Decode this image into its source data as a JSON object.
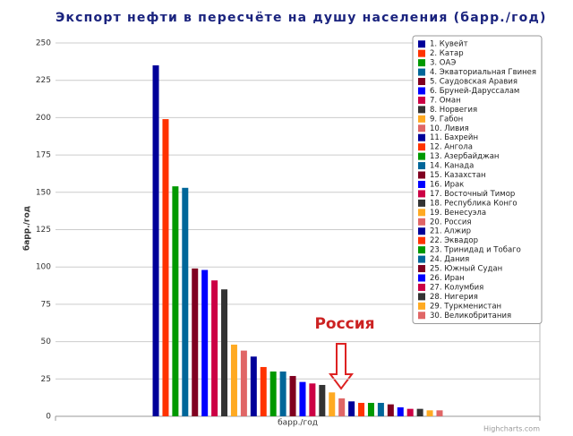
{
  "chart_data": {
    "type": "bar",
    "title": "Экспорт нефти в пересчёте на душу населения (барр./год)",
    "y_label": "барр./год",
    "categories": [
      "барр./год"
    ],
    "annotation": "Россия",
    "credits": "Highcharts.com",
    "ylim": [
      0,
      250
    ],
    "yticks": [
      0,
      25,
      50,
      75,
      100,
      125,
      150,
      175,
      200,
      225,
      250
    ],
    "grid": true,
    "legend": "top-right",
    "series": [
      {
        "name": "1. Кувейт",
        "color": "#000099",
        "values": [
          235
        ]
      },
      {
        "name": "2. Катар",
        "color": "#ff3300",
        "values": [
          199
        ]
      },
      {
        "name": "3. ОАЭ",
        "color": "#009900",
        "values": [
          154
        ]
      },
      {
        "name": "4. Экваториальная Гвинея",
        "color": "#006699",
        "values": [
          153
        ]
      },
      {
        "name": "5. Саудовская Аравия",
        "color": "#800020",
        "values": [
          99
        ]
      },
      {
        "name": "6. Бруней-Даруссалам",
        "color": "#0000ff",
        "values": [
          98
        ]
      },
      {
        "name": "7. Оман",
        "color": "#cc0044",
        "values": [
          91
        ]
      },
      {
        "name": "8. Норвегия",
        "color": "#333333",
        "values": [
          85
        ]
      },
      {
        "name": "9. Габон",
        "color": "#ffaa22",
        "values": [
          48
        ]
      },
      {
        "name": "10. Ливия",
        "color": "#e06666",
        "values": [
          44
        ]
      },
      {
        "name": "11. Бахрейн",
        "color": "#000099",
        "values": [
          40
        ]
      },
      {
        "name": "12. Ангола",
        "color": "#ff3300",
        "values": [
          33
        ]
      },
      {
        "name": "13. Азербайджан",
        "color": "#009900",
        "values": [
          30
        ]
      },
      {
        "name": "14. Канада",
        "color": "#006699",
        "values": [
          30
        ]
      },
      {
        "name": "15. Казахстан",
        "color": "#800020",
        "values": [
          27
        ]
      },
      {
        "name": "16. Ирак",
        "color": "#0000ff",
        "values": [
          23
        ]
      },
      {
        "name": "17. Восточный Тимор",
        "color": "#cc0044",
        "values": [
          22
        ]
      },
      {
        "name": "18. Республика Конго",
        "color": "#333333",
        "values": [
          21
        ]
      },
      {
        "name": "19. Венесуэла",
        "color": "#ffaa22",
        "values": [
          16
        ]
      },
      {
        "name": "20. Россия",
        "color": "#e06666",
        "values": [
          12
        ]
      },
      {
        "name": "21. Алжир",
        "color": "#000099",
        "values": [
          10
        ]
      },
      {
        "name": "22. Эквадор",
        "color": "#ff3300",
        "values": [
          9
        ]
      },
      {
        "name": "23. Тринидад и Тобаго",
        "color": "#009900",
        "values": [
          9
        ]
      },
      {
        "name": "24. Дания",
        "color": "#006699",
        "values": [
          9
        ]
      },
      {
        "name": "25. Южный Судан",
        "color": "#800020",
        "values": [
          8
        ]
      },
      {
        "name": "26. Иран",
        "color": "#0000ff",
        "values": [
          6
        ]
      },
      {
        "name": "27. Колумбия",
        "color": "#cc0044",
        "values": [
          5
        ]
      },
      {
        "name": "28. Нигерия",
        "color": "#333333",
        "values": [
          5
        ]
      },
      {
        "name": "29. Туркменистан",
        "color": "#ffaa22",
        "values": [
          4
        ]
      },
      {
        "name": "30. Великобритания",
        "color": "#e06666",
        "values": [
          4
        ]
      }
    ]
  }
}
